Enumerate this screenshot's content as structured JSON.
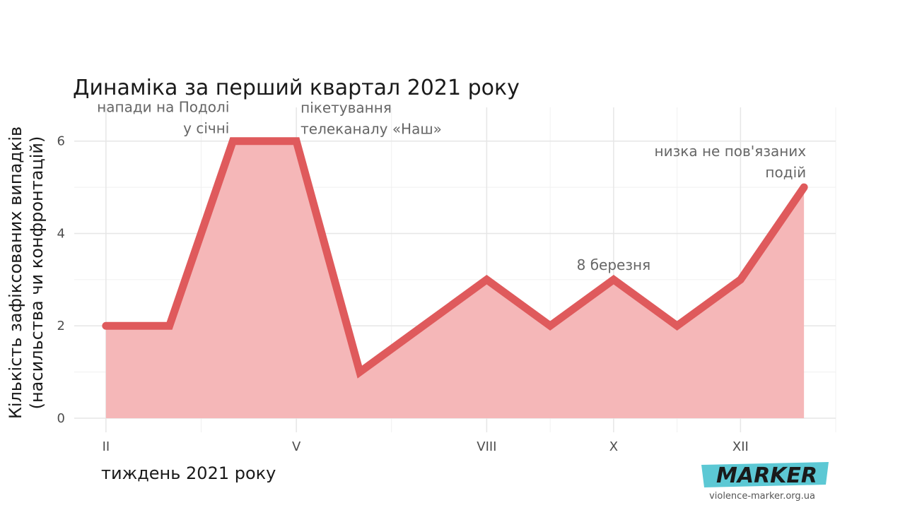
{
  "chart_data": {
    "type": "area",
    "title": "Динаміка за перший квартал 2021 року",
    "xlabel": "тиждень 2021 року",
    "ylabel_line1": "Кількість зафіксованих випадків",
    "ylabel_line2": "(насильства чи конфронтацій)",
    "x": [
      2,
      3,
      4,
      5,
      6,
      7,
      8,
      9,
      10,
      11,
      12,
      13
    ],
    "values": [
      2,
      2,
      6,
      6,
      1,
      2,
      3,
      2,
      3,
      2,
      3,
      5
    ],
    "xlim": [
      1.5,
      13.5
    ],
    "ylim": [
      0,
      6.5
    ],
    "x_ticks": [
      {
        "x": 2,
        "label": "II"
      },
      {
        "x": 5,
        "label": "V"
      },
      {
        "x": 8,
        "label": "VIII"
      },
      {
        "x": 10,
        "label": "X"
      },
      {
        "x": 12,
        "label": "XII"
      }
    ],
    "x_minor_grid": [
      3.5,
      6.5,
      9,
      11,
      13.5
    ],
    "y_ticks": [
      0,
      2,
      4,
      6
    ],
    "y_minor_grid": [
      1,
      3,
      5,
      7
    ],
    "grid": true,
    "line_color": "#df5a5c",
    "fill_color": "#f5b7b8",
    "annotations": [
      {
        "lines": [
          "напади на Подолі",
          "у січні"
        ],
        "x": 4,
        "y": 6,
        "anchor": "end"
      },
      {
        "lines": [
          "пікетування",
          "телеканалу «Наш»"
        ],
        "x": 5,
        "y": 6,
        "anchor": "start"
      },
      {
        "lines": [
          "8 березня"
        ],
        "x": 10,
        "y": 3,
        "anchor": "middle"
      },
      {
        "lines": [
          "низка не пов'язаних",
          "подій"
        ],
        "x": 13,
        "y": 5,
        "anchor": "end"
      }
    ]
  },
  "brand": {
    "name": "MARKER",
    "url": "violence-marker.org.ua",
    "accent": "#5cc8d4"
  }
}
